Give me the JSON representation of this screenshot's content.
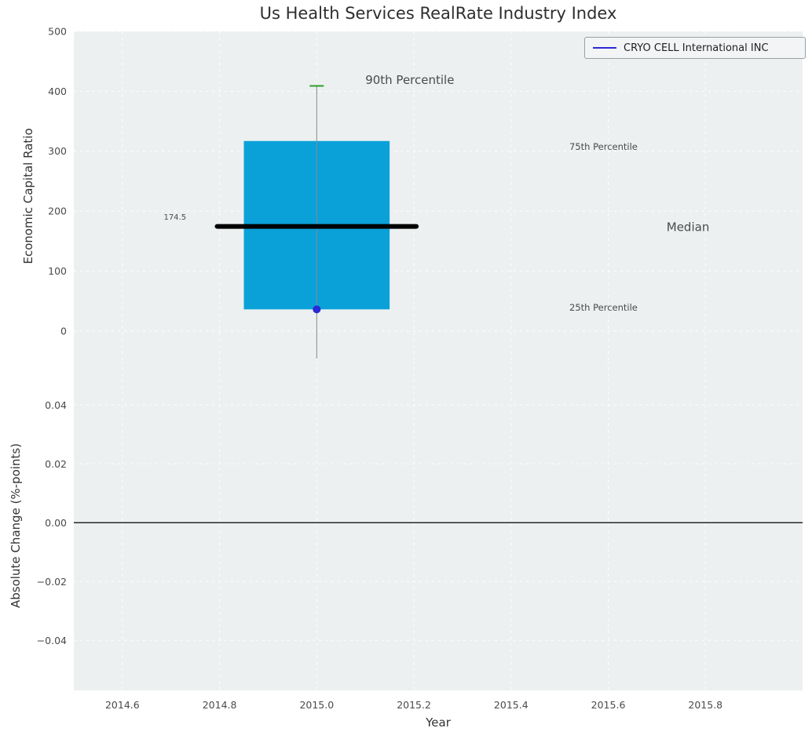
{
  "figure": {
    "title": "Us Health Services RealRate Industry Index"
  },
  "chart_data": [
    {
      "type": "boxplot",
      "subplot": "top",
      "title": "Us Health Services RealRate Industry Index",
      "xlabel": "Year",
      "ylabel": "Economic Capital Ratio",
      "xlim": [
        2014.5,
        2016.0
      ],
      "ylim": [
        -50,
        500
      ],
      "grid": true,
      "xticks": [
        {
          "v": 2014.6,
          "label": "2014.6"
        },
        {
          "v": 2014.8,
          "label": "2014.8"
        },
        {
          "v": 2015.0,
          "label": "2015.0"
        },
        {
          "v": 2015.2,
          "label": "2015.2"
        },
        {
          "v": 2015.4,
          "label": "2015.4"
        },
        {
          "v": 2015.6,
          "label": "2015.6"
        },
        {
          "v": 2015.8,
          "label": "2015.8"
        }
      ],
      "yticks": [
        {
          "v": 0,
          "label": "0"
        },
        {
          "v": 100,
          "label": "100"
        },
        {
          "v": 200,
          "label": "200"
        },
        {
          "v": 300,
          "label": "300"
        },
        {
          "v": 400,
          "label": "400"
        },
        {
          "v": 500,
          "label": "500"
        }
      ],
      "legend": {
        "label": "CRYO CELL International INC",
        "color": "#2a2ad4",
        "position": "upper right"
      },
      "boxplot": {
        "x": 2015.0,
        "q1": 36,
        "median": 174.5,
        "q3": 317,
        "p90": 409,
        "whisker_min": -46,
        "box_halfwidth_years": 0.15,
        "median_halfwidth_years": 0.205,
        "colors": {
          "box": "#0aa1d9",
          "median": "#000000",
          "whisker": "#8a8a8a",
          "cap": "#2ca02c",
          "dot": "#2a2ad4"
        }
      },
      "series": [
        {
          "name": "CRYO CELL International INC",
          "x": 2015.0,
          "value": 36,
          "marker": "dot",
          "color": "#2a2ad4"
        }
      ],
      "annotations": [
        {
          "id": "p90-label",
          "text": "90th Percentile",
          "x": 2015.1,
          "y": 412,
          "color": "#1a1a1a",
          "size": 15
        },
        {
          "id": "p75-label",
          "text": "75th Percentile",
          "x": 2015.52,
          "y": 302,
          "color": "#2196c3",
          "size": 11.5
        },
        {
          "id": "median-label",
          "text": "Median",
          "x": 2015.72,
          "y": 167,
          "color": "#1a1a1a",
          "size": 15
        },
        {
          "id": "p25-label",
          "text": "25th Percentile",
          "x": 2015.52,
          "y": 34,
          "color": "#2196c3",
          "size": 11.5
        },
        {
          "id": "median-value",
          "text": "174.5",
          "x": 2014.685,
          "y": 186,
          "color": "#1a1a1a",
          "size": 10
        }
      ]
    },
    {
      "type": "line",
      "subplot": "bottom",
      "xlabel": "Year",
      "ylabel": "Absolute Change (%-points)",
      "xlim": [
        2014.5,
        2016.0
      ],
      "ylim": [
        -0.057,
        0.055
      ],
      "grid": true,
      "yticks": [
        {
          "v": 0.04,
          "label": "0.04"
        },
        {
          "v": 0.02,
          "label": "0.02"
        },
        {
          "v": 0.0,
          "label": "0.00"
        },
        {
          "v": -0.02,
          "label": "−0.02"
        },
        {
          "v": -0.04,
          "label": "−0.04"
        }
      ],
      "zero_line": 0.0,
      "series": []
    }
  ],
  "style": {
    "plot_bg": "#ecf0f1",
    "grid_color": "#ffffff",
    "tick_color": "#4a4a4a"
  }
}
